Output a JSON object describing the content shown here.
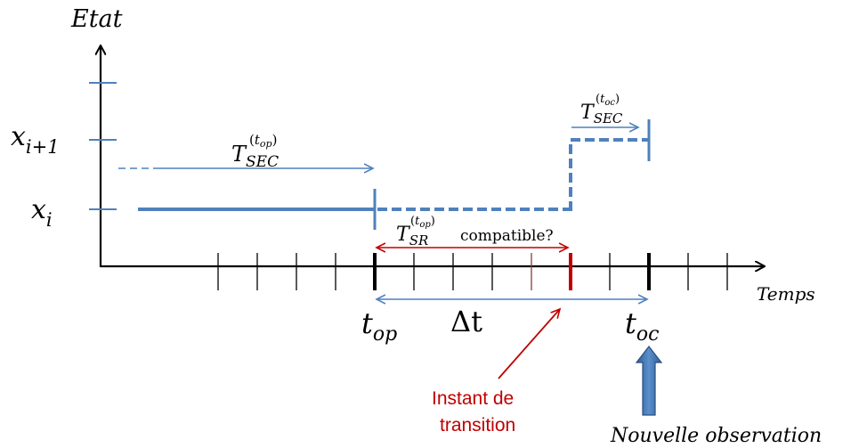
{
  "axes": {
    "y_label": "Etat",
    "x_label": "Temps"
  },
  "levels": {
    "xi": {
      "base": "x",
      "sub": "i"
    },
    "xi1": {
      "base": "x",
      "sub": "i+1"
    }
  },
  "times": {
    "top": {
      "base": "t",
      "sub": "op"
    },
    "toc": {
      "base": "t",
      "sub": "oc"
    },
    "delta": "Δt"
  },
  "annotations": {
    "tsec_op": {
      "base": "T",
      "sub": "SEC",
      "sup_t": "t",
      "sup_sub": "op"
    },
    "tsec_oc": {
      "base": "T",
      "sub": "SEC",
      "sup_t": "t",
      "sup_sub": "oc"
    },
    "tsr": {
      "base": "T",
      "sub": "SR",
      "sup_t": "t",
      "sup_sub": "op",
      "suffix": "compatible?"
    },
    "transition_line1": "Instant de",
    "transition_line2": "transition",
    "new_obs": "Nouvelle observation"
  },
  "colors": {
    "state": "#4F81BD",
    "accent_red": "#C00000",
    "axis": "#000000",
    "big_arrow": "#3F6FA8"
  }
}
